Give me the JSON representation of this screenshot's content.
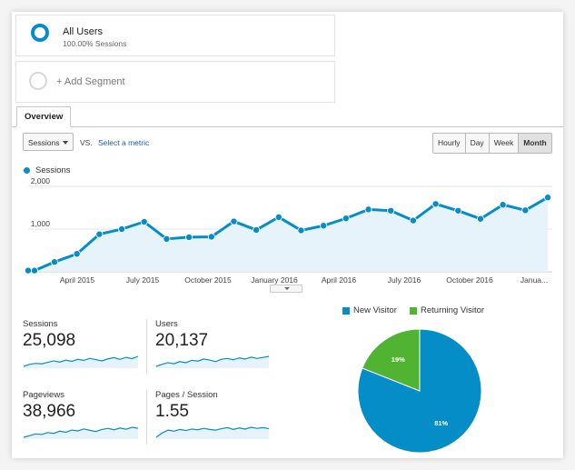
{
  "segments": {
    "all_users": {
      "name": "All Users",
      "subtitle": "100.00% Sessions"
    },
    "add_segment": {
      "label": "+ Add Segment"
    }
  },
  "tabs": [
    {
      "label": "Overview"
    }
  ],
  "controls": {
    "metric_select": "Sessions",
    "vs_label": "VS.",
    "select_metric_link": "Select a metric",
    "granularity": [
      "Hourly",
      "Day",
      "Week",
      "Month"
    ],
    "active_granularity": "Month"
  },
  "colors": {
    "accent": "#058dc7",
    "new_visitor": "#058dc7",
    "returning_visitor": "#50b432",
    "area_fill": "#e6f3fa"
  },
  "chart_data": [
    {
      "type": "area",
      "series": [
        {
          "name": "Sessions",
          "values": [
            30,
            30,
            230,
            420,
            880,
            1000,
            1170,
            770,
            810,
            820,
            1180,
            980,
            1280,
            970,
            1080,
            1250,
            1460,
            1430,
            1200,
            1590,
            1430,
            1240,
            1570,
            1440,
            1740
          ]
        }
      ],
      "x_tick_labels": [
        "April 2015",
        "July 2015",
        "October 2015",
        "January 2016",
        "April 2016",
        "July 2016",
        "October 2016",
        "Janua..."
      ],
      "y_tick_labels": [
        "2,000",
        "1,000"
      ],
      "ylim": [
        0,
        2000
      ],
      "grid": true,
      "legend_position": "top-left"
    },
    {
      "type": "pie",
      "series": [
        {
          "name": "New Visitor",
          "value": 81,
          "label": "81%"
        },
        {
          "name": "Returning Visitor",
          "value": 19,
          "label": "19%"
        }
      ],
      "legend_position": "top"
    }
  ],
  "stats": [
    {
      "label": "Sessions",
      "value": "25,098",
      "spark": [
        30,
        38,
        42,
        40,
        46,
        52,
        47,
        55,
        50,
        58,
        54,
        62,
        57,
        52,
        60,
        65,
        58,
        66,
        61,
        70
      ]
    },
    {
      "label": "Users",
      "value": "20,137",
      "spark": [
        30,
        38,
        44,
        40,
        48,
        44,
        53,
        50,
        58,
        54,
        48,
        57,
        60,
        55,
        62,
        58,
        65,
        60,
        64,
        68
      ]
    },
    {
      "label": "Pageviews",
      "value": "38,966",
      "spark": [
        30,
        36,
        42,
        40,
        47,
        44,
        52,
        48,
        56,
        53,
        60,
        55,
        51,
        58,
        62,
        57,
        63,
        59,
        66,
        62
      ]
    },
    {
      "label": "Pages / Session",
      "value": "1.55",
      "spark": [
        30,
        42,
        50,
        47,
        52,
        49,
        53,
        51,
        55,
        52,
        50,
        54,
        57,
        52,
        56,
        53,
        58,
        55,
        57,
        54
      ]
    }
  ]
}
